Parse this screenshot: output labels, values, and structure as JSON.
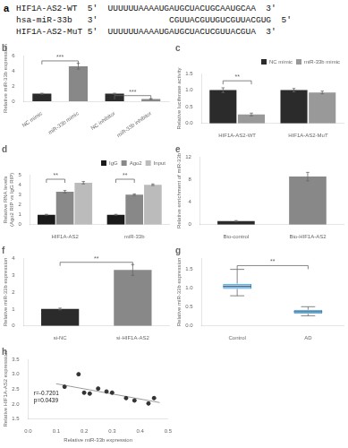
{
  "chart_data": [
    {
      "type": "text",
      "title": "a",
      "annotations": [
        {
          "text": "HIF1A-AS2-WT  5'  UUUUUUAAAAUGAUGCUACUGCAAUGCAA  3'"
        },
        {
          "text": "hsa-miR-33b   3'              CGUUACGUUGUCGUUACGUG  5'"
        },
        {
          "text": "HIF1A-AS2-MuT 5'  UUUUUUAAAAUGAUGCUACUCGUUACGUA  3'"
        }
      ]
    },
    {
      "type": "bar",
      "title": "b",
      "ylabel": "Relative miR-33b expression",
      "categories": [
        "NC mimic",
        "miR-33b mimic",
        "NC inhibitor",
        "miR-33b inhibitor"
      ],
      "values": [
        1.0,
        4.6,
        1.0,
        0.3
      ],
      "errors": [
        0.06,
        0.38,
        0.06,
        0.05
      ],
      "colors": [
        "#2b2b2b",
        "#888888",
        "#2b2b2b",
        "#888888"
      ],
      "ylim": [
        0,
        6
      ],
      "yticks": [
        0,
        2,
        4,
        6
      ],
      "grid": false,
      "annotations": [
        {
          "text": "***",
          "from": "NC mimic",
          "to": "miR-33b mimic",
          "y": 5.3
        },
        {
          "text": "***",
          "from": "NC inhibitor",
          "to": "miR-33b inhibitor",
          "y": 0.75
        }
      ]
    },
    {
      "type": "bar",
      "title": "c",
      "ylabel": "Relative luciferase activity",
      "categories": [
        "HIF1A-AS2-WT",
        "HIF1A-AS2-MuT"
      ],
      "series": [
        {
          "name": "NC mimic",
          "color": "#2b2b2b",
          "values": [
            1.0,
            1.0
          ],
          "errors": [
            0.07,
            0.05
          ]
        },
        {
          "name": "miR-33b mimic",
          "color": "#999999",
          "values": [
            0.27,
            0.93
          ],
          "errors": [
            0.04,
            0.04
          ]
        }
      ],
      "ylim": [
        0,
        1.5
      ],
      "yticks": [
        {
          "value": 0,
          "label": "0.0"
        },
        0.5,
        {
          "value": 1,
          "label": "1.0"
        },
        1.5
      ],
      "grid": false,
      "legend": "upper right",
      "annotations": [
        {
          "text": "**",
          "category": "HIF1A-AS2-WT",
          "from": "NC mimic",
          "to": "miR-33b mimic",
          "y": 1.28
        }
      ]
    },
    {
      "type": "bar",
      "title": "d",
      "ylabel": "Relative RNA levels\n(Ago2 RIP vs IgG RIP)",
      "categories": [
        "HIF1A-AS2",
        "miR-33b"
      ],
      "series": [
        {
          "name": "IgG",
          "color": "#1a1a1a",
          "values": [
            1.0,
            1.0
          ],
          "errors": [
            0.04,
            0.04
          ]
        },
        {
          "name": "Ago2",
          "color": "#888888",
          "values": [
            3.3,
            3.0
          ],
          "errors": [
            0.12,
            0.08
          ]
        },
        {
          "name": "Input",
          "color": "#bbbbbb",
          "values": [
            4.2,
            4.0
          ],
          "errors": [
            0.12,
            0.08
          ]
        }
      ],
      "ylim": [
        0,
        5
      ],
      "yticks": [
        0,
        1,
        2,
        3,
        4,
        5
      ],
      "grid": false,
      "legend": "upper right",
      "annotations": [
        {
          "text": "**",
          "category": "HIF1A-AS2",
          "from": "IgG",
          "to": "Ago2",
          "y": 4.55
        },
        {
          "text": "**",
          "category": "miR-33b",
          "from": "IgG",
          "to": "Ago2",
          "y": 4.55
        }
      ]
    },
    {
      "type": "bar",
      "title": "e",
      "ylabel": "Relative enrichment of miR-33b",
      "categories": [
        "Bio-control",
        "Bio-HIF1A-AS2"
      ],
      "values": [
        0.65,
        8.5
      ],
      "errors": [
        0.08,
        0.75
      ],
      "colors": [
        "#2b2b2b",
        "#888888"
      ],
      "ylim": [
        0,
        12
      ],
      "yticks": [
        0,
        4,
        8,
        12
      ],
      "grid": false
    },
    {
      "type": "bar",
      "title": "f",
      "ylabel": "Relative miR-33b expression",
      "categories": [
        "si-NC",
        "si-HIF1A-AS2"
      ],
      "values": [
        1.0,
        3.3
      ],
      "errors": [
        0.05,
        0.32
      ],
      "colors": [
        "#2b2b2b",
        "#888888"
      ],
      "ylim": [
        0,
        4
      ],
      "yticks": [
        0,
        1,
        2,
        3,
        4
      ],
      "grid": false,
      "annotations": [
        {
          "text": "**",
          "from": "si-NC",
          "to": "si-HIF1A-AS2",
          "y": 3.75
        }
      ]
    },
    {
      "type": "box",
      "title": "g",
      "ylabel": "Relative miR-33b expression",
      "categories": [
        "Control",
        "AD"
      ],
      "values": [
        {
          "min": 0.8,
          "q1": 0.98,
          "median": 1.05,
          "q3": 1.12,
          "max": 1.5
        },
        {
          "min": 0.27,
          "q1": 0.32,
          "median": 0.38,
          "q3": 0.43,
          "max": 0.51
        }
      ],
      "ylim": [
        0,
        1.8
      ],
      "yticks": [
        {
          "value": 0,
          "label": "0.0"
        },
        0.5,
        {
          "value": 1,
          "label": "1.0"
        },
        1.5
      ],
      "grid": false,
      "annotations": [
        {
          "text": "**",
          "from": "Control",
          "to": "AD",
          "y": 1.6
        }
      ]
    },
    {
      "type": "scatter",
      "title": "h",
      "xlabel": "Relative miR-33b expression",
      "ylabel": "Relative HIF1A-AS2 expression",
      "series": [
        {
          "type": "scatter",
          "color": "#333333",
          "x": [
            0.13,
            0.18,
            0.2,
            0.22,
            0.25,
            0.28,
            0.3,
            0.35,
            0.38,
            0.43,
            0.45
          ],
          "values": [
            2.58,
            3.0,
            2.38,
            2.35,
            2.52,
            2.42,
            2.38,
            2.2,
            2.12,
            2.02,
            2.2
          ]
        },
        {
          "type": "line",
          "color": "#999999",
          "x": [
            0.1,
            0.47
          ],
          "values": [
            2.68,
            2.05
          ]
        }
      ],
      "xlim": [
        0,
        0.5
      ],
      "xticks": [
        {
          "value": 0,
          "label": "0.0"
        },
        0.1,
        0.2,
        0.3,
        0.4,
        0.5
      ],
      "ylim": [
        1.5,
        3.5
      ],
      "yticks": [
        1.5,
        {
          "value": 2,
          "label": "2.0"
        },
        2.5,
        {
          "value": 3,
          "label": "3.0"
        },
        3.5
      ],
      "grid": false,
      "annotations": [
        {
          "text": "r=-0.7201\np=0.0439"
        }
      ]
    }
  ]
}
